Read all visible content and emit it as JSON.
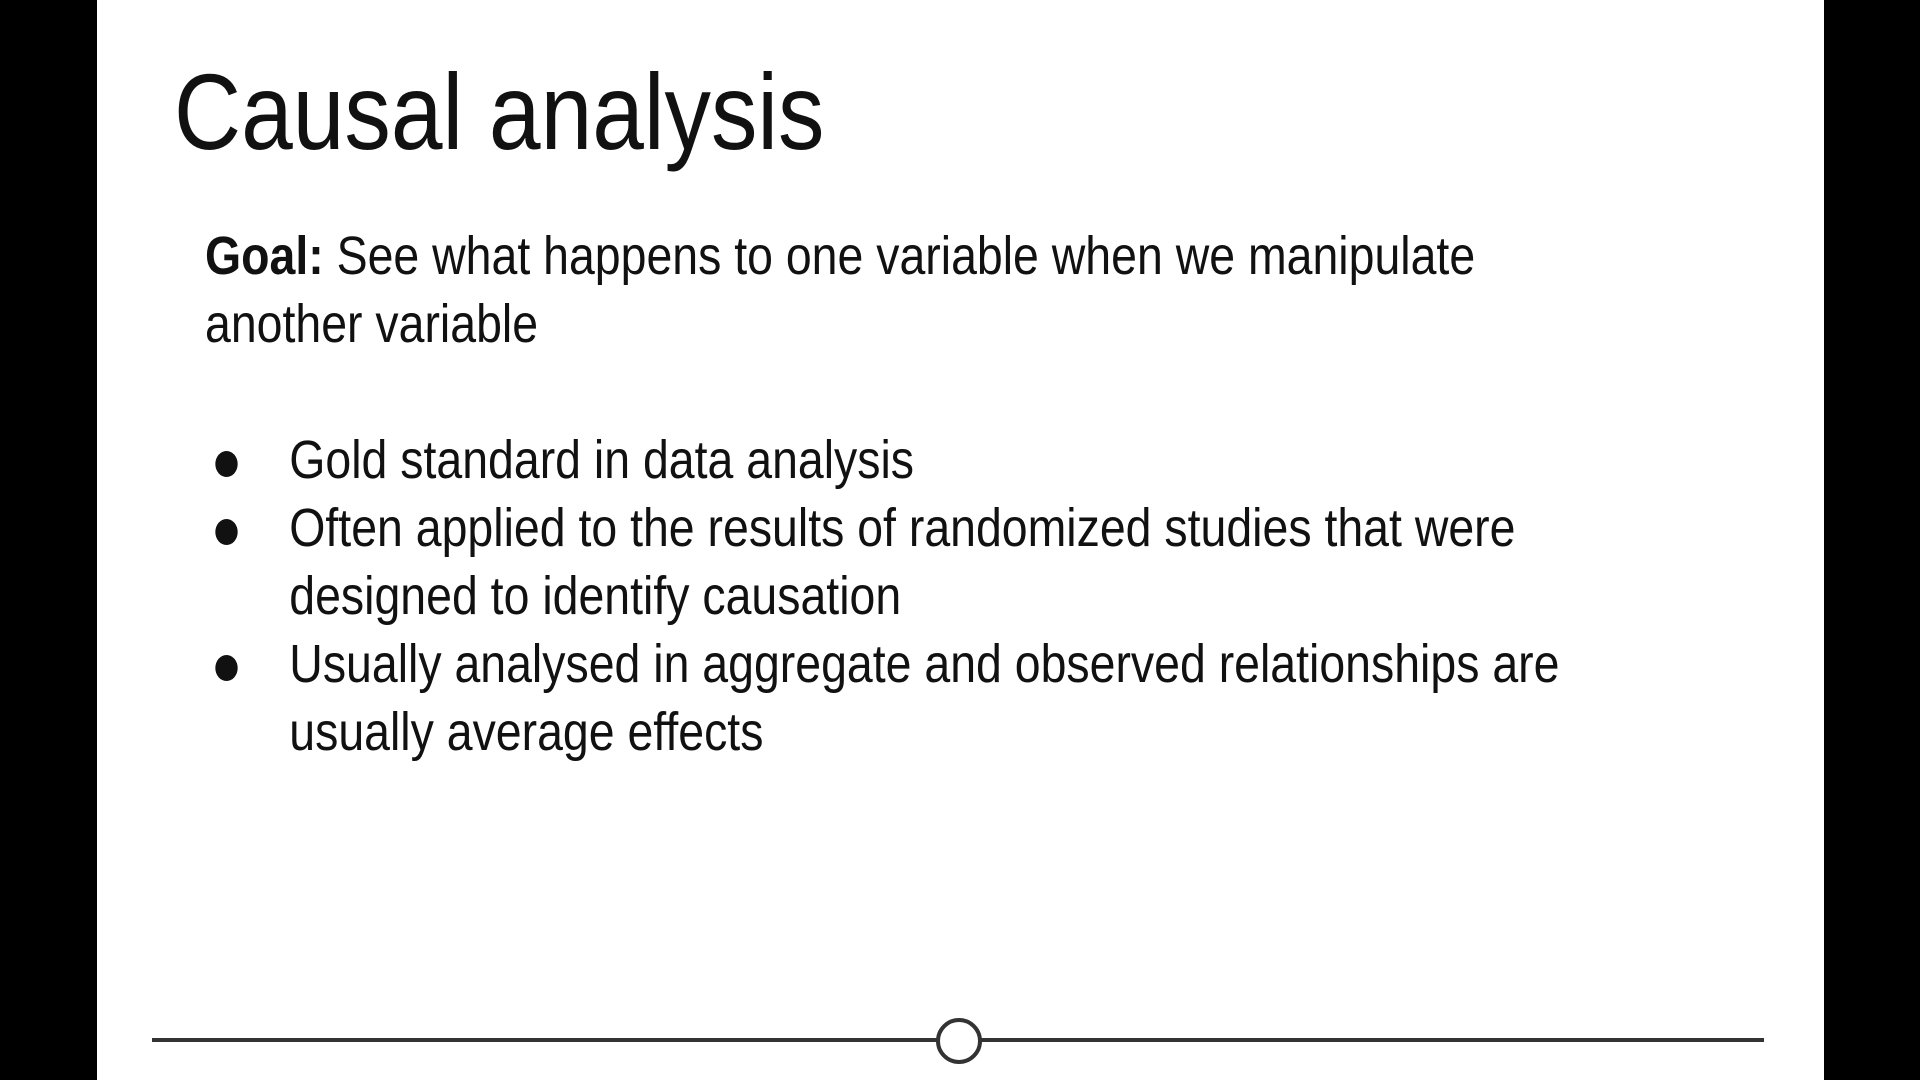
{
  "slide": {
    "title": "Causal analysis",
    "goal_label": "Goal:",
    "goal_text": " See what happens to one variable when we manipulate another variable",
    "bullets": [
      "Gold standard in data analysis",
      "Often applied to the results of randomized studies that were designed to identify causation",
      "Usually analysed in aggregate and observed relationships are usually average effects"
    ]
  },
  "player": {
    "progress_fraction": 0.5,
    "track_color": "#333333"
  }
}
